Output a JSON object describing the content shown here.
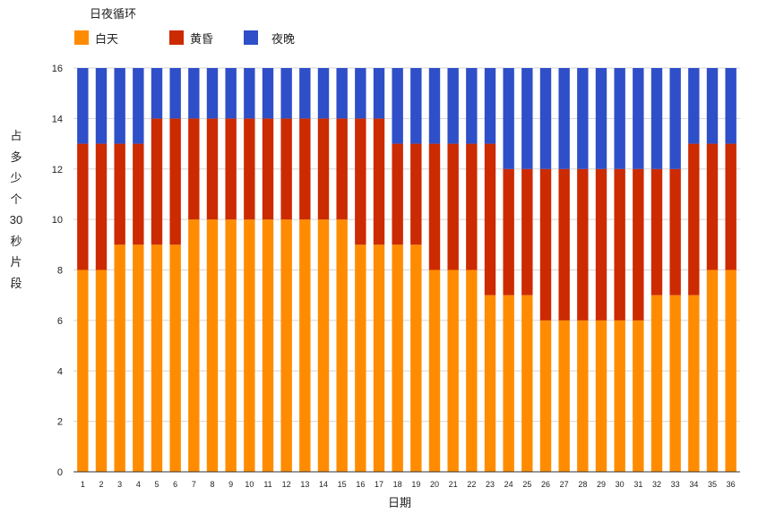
{
  "chart_data": {
    "type": "bar",
    "stacked": true,
    "title": "日夜循环",
    "xlabel": "日期",
    "ylabel": [
      "占",
      "多",
      "少",
      "个",
      "30",
      "秒",
      "片",
      "段"
    ],
    "ylim": [
      0,
      16
    ],
    "yticks": [
      0,
      2,
      4,
      6,
      8,
      10,
      12,
      14,
      16
    ],
    "grid": true,
    "legend_position": "top-left",
    "categories": [
      "1",
      "2",
      "3",
      "4",
      "5",
      "6",
      "7",
      "8",
      "9",
      "10",
      "11",
      "12",
      "13",
      "14",
      "15",
      "16",
      "17",
      "18",
      "19",
      "20",
      "21",
      "22",
      "23",
      "24",
      "25",
      "26",
      "27",
      "28",
      "29",
      "30",
      "31",
      "32",
      "33",
      "34",
      "35",
      "36"
    ],
    "series": [
      {
        "name": "白天",
        "color": "#ff8c00",
        "values": [
          8,
          8,
          9,
          9,
          9,
          9,
          10,
          10,
          10,
          10,
          10,
          10,
          10,
          10,
          10,
          9,
          9,
          9,
          9,
          8,
          8,
          8,
          7,
          7,
          7,
          6,
          6,
          6,
          6,
          6,
          6,
          7,
          7,
          7,
          8,
          8
        ]
      },
      {
        "name": "黄昏",
        "color": "#cc2a00",
        "values": [
          5,
          5,
          4,
          4,
          5,
          5,
          4,
          4,
          4,
          4,
          4,
          4,
          4,
          4,
          4,
          5,
          5,
          4,
          4,
          5,
          5,
          5,
          6,
          5,
          5,
          6,
          6,
          6,
          6,
          6,
          6,
          5,
          5,
          6,
          5,
          5
        ]
      },
      {
        "name": "夜晚",
        "color": "#2e4fc8",
        "values": [
          3,
          3,
          3,
          3,
          2,
          2,
          2,
          2,
          2,
          2,
          2,
          2,
          2,
          2,
          2,
          2,
          2,
          3,
          3,
          3,
          3,
          3,
          3,
          4,
          4,
          4,
          4,
          4,
          4,
          4,
          4,
          4,
          4,
          3,
          3,
          3
        ]
      }
    ]
  }
}
